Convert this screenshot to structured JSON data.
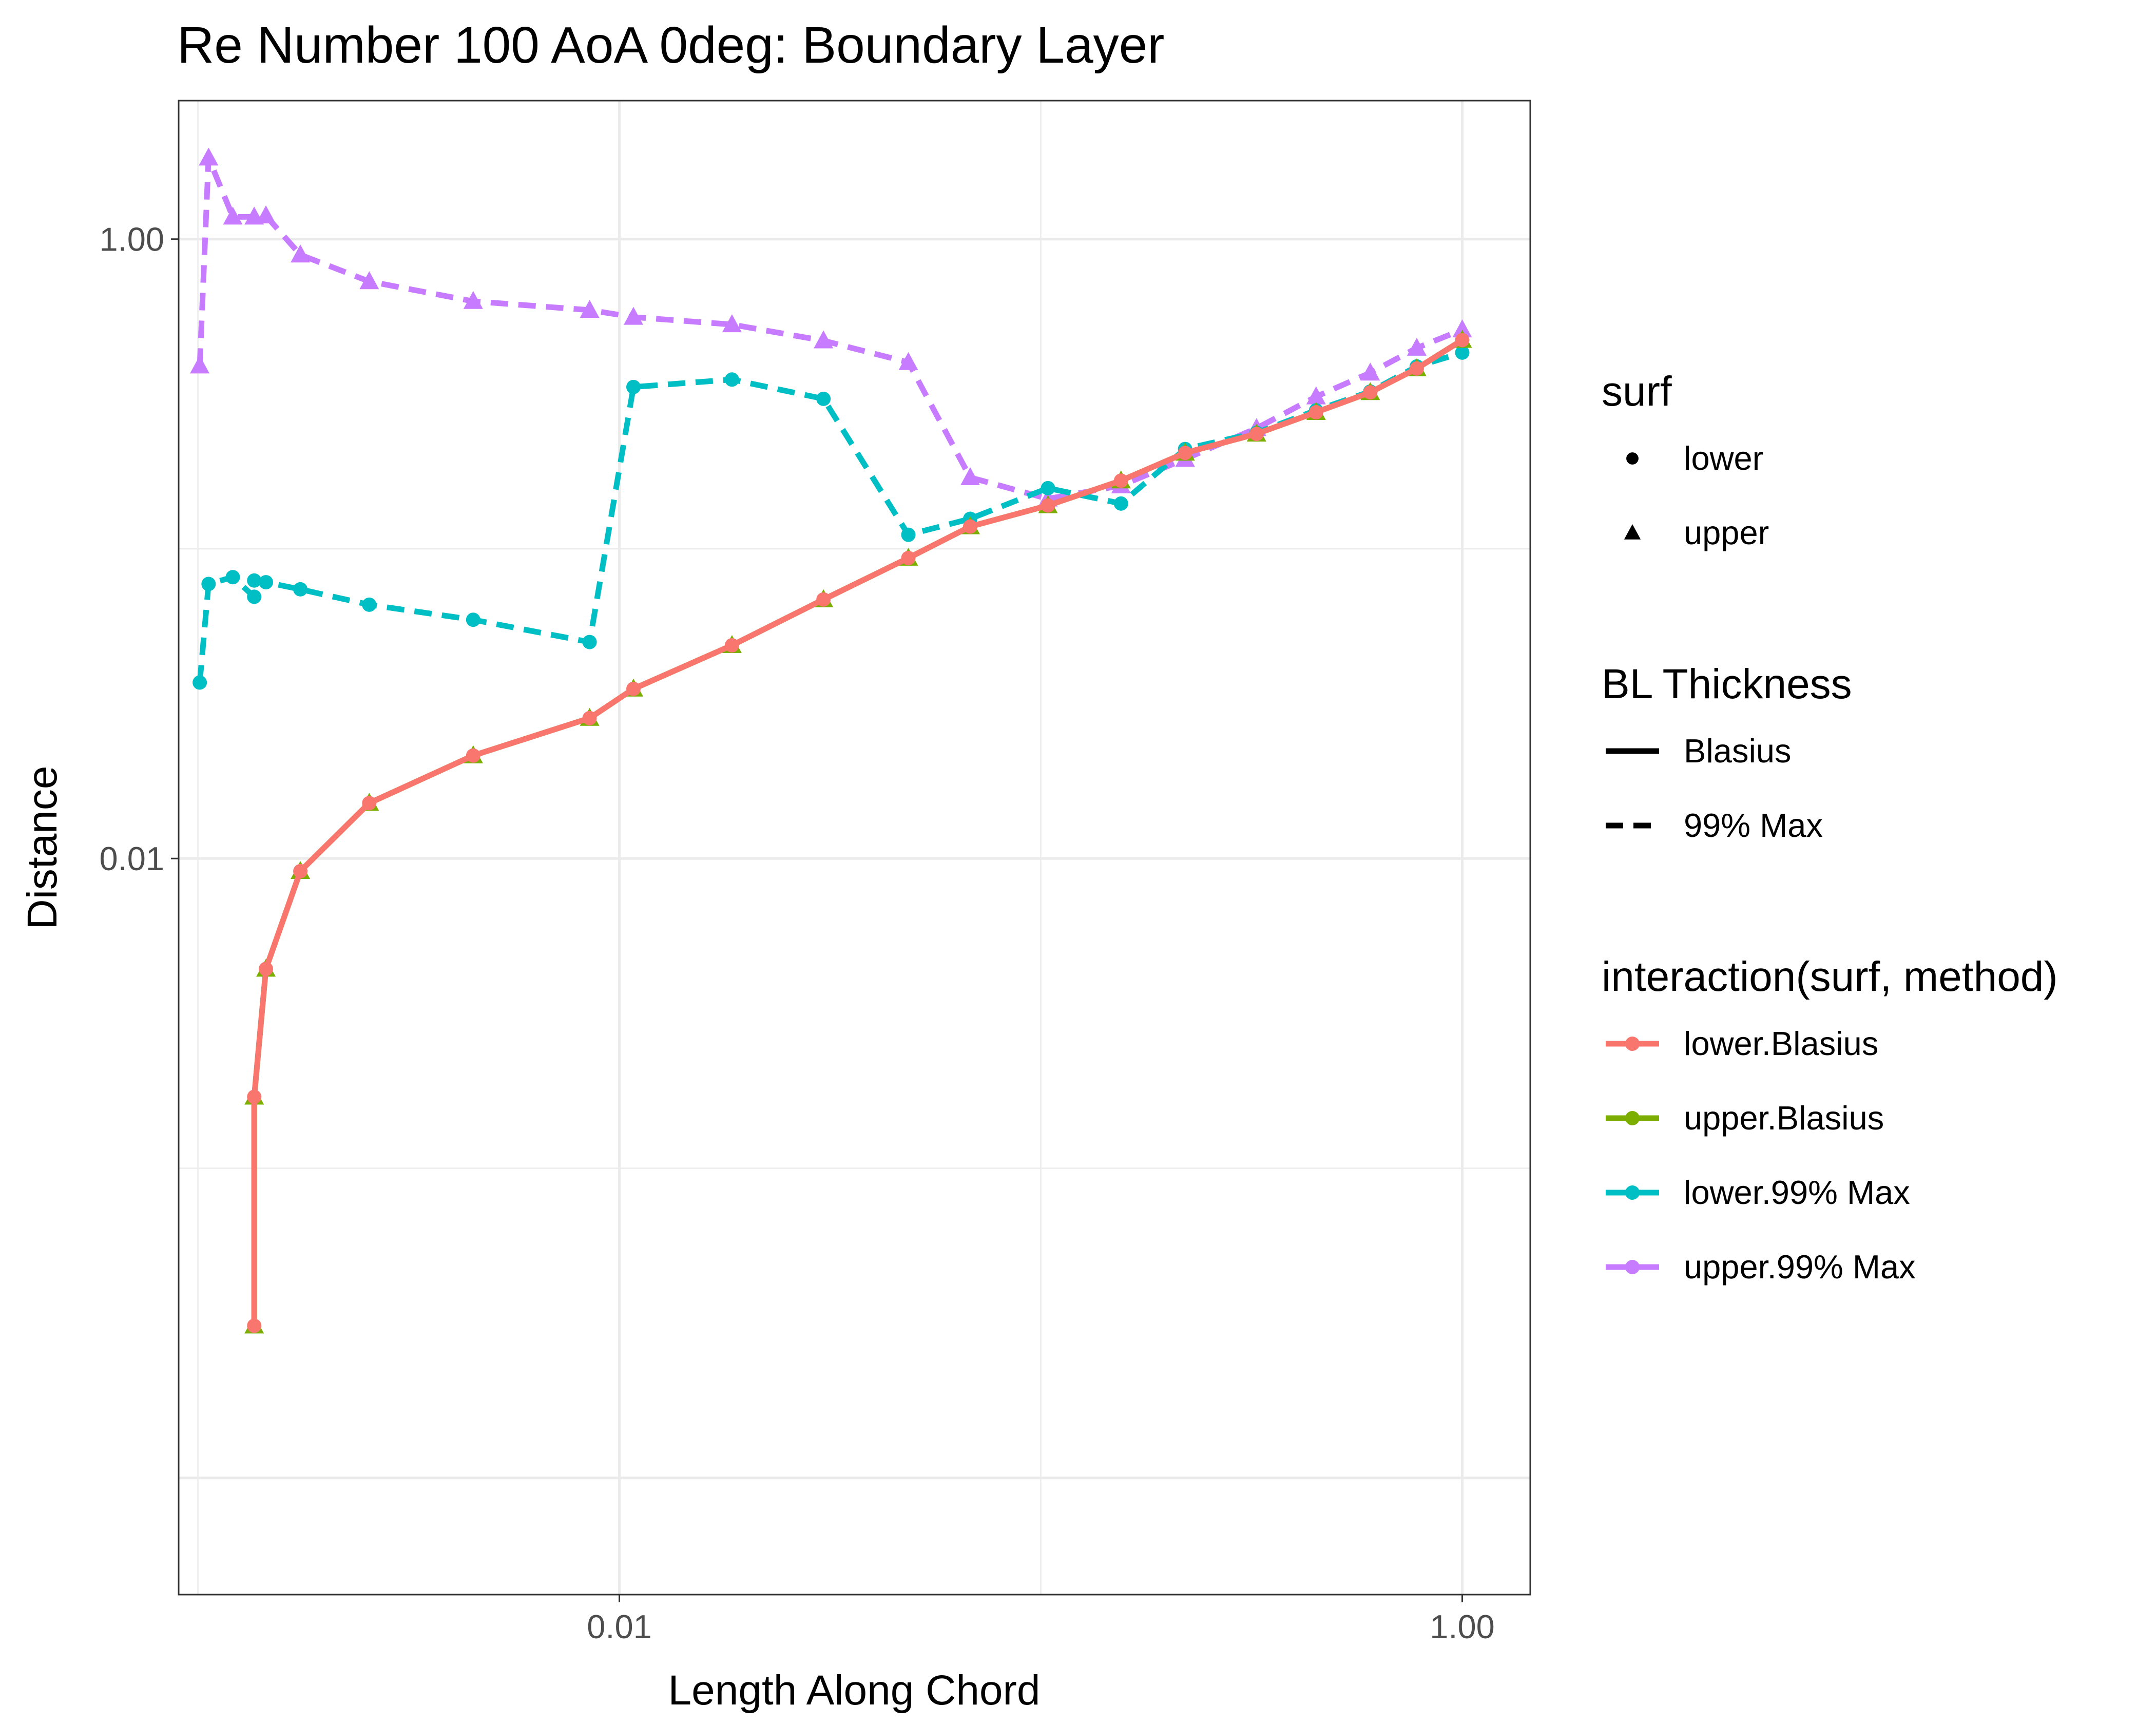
{
  "chart_data": {
    "type": "line",
    "title": "Re Number 100 AoA 0deg: Boundary Layer",
    "xlabel": "Length Along Chord",
    "ylabel": "Distance",
    "x_scale": "log10",
    "y_scale": "log10",
    "xlim": [
      0.0009,
      1.45
    ],
    "ylim": [
      4.2e-05,
      2.8
    ],
    "x_ticks": [
      {
        "value": 0.01,
        "label": "0.01"
      },
      {
        "value": 1.0,
        "label": "1.00"
      }
    ],
    "y_ticks": [
      {
        "value": 0.01,
        "label": "0.01"
      },
      {
        "value": 1.0,
        "label": "1.00"
      }
    ],
    "grid": true,
    "colors": {
      "lower_blasius": "#F8766D",
      "upper_blasius": "#7CAE00",
      "lower_99max": "#00BFC4",
      "upper_99max": "#C77CFF"
    },
    "series": [
      {
        "name": "upper.99% Max",
        "surf": "upper",
        "method": "99% Max",
        "color": "#C77CFF",
        "x": [
          0.00101,
          0.00106,
          0.00121,
          0.00136,
          0.00145,
          0.00175,
          0.00255,
          0.0045,
          0.0085,
          0.0108,
          0.0185,
          0.0305,
          0.0485,
          0.068,
          0.104,
          0.155,
          0.22,
          0.325,
          0.45,
          0.605,
          0.78,
          1.0
        ],
        "y": [
          0.39,
          1.83,
          1.18,
          1.18,
          1.19,
          0.89,
          0.73,
          0.63,
          0.59,
          0.56,
          0.53,
          0.47,
          0.4,
          0.17,
          0.145,
          0.16,
          0.195,
          0.245,
          0.31,
          0.37,
          0.445,
          0.51
        ]
      },
      {
        "name": "lower.99% Max",
        "surf": "lower",
        "method": "99% Max",
        "color": "#00BFC4",
        "x": [
          0.00101,
          0.00106,
          0.00121,
          0.00136,
          0.00136,
          0.00145,
          0.00175,
          0.00255,
          0.0045,
          0.0085,
          0.0108,
          0.0185,
          0.0305,
          0.0485,
          0.068,
          0.104,
          0.155,
          0.22,
          0.325,
          0.45,
          0.605,
          0.78,
          1.0
        ],
        "y": [
          0.037,
          0.077,
          0.081,
          0.07,
          0.079,
          0.078,
          0.074,
          0.066,
          0.059,
          0.05,
          0.333,
          0.352,
          0.305,
          0.111,
          0.125,
          0.157,
          0.14,
          0.21,
          0.237,
          0.28,
          0.322,
          0.388,
          0.43
        ]
      },
      {
        "name": "upper.Blasius",
        "surf": "upper",
        "method": "Blasius",
        "color": "#7CAE00",
        "x": [
          0.00136,
          0.00136,
          0.00145,
          0.00175,
          0.00255,
          0.0045,
          0.0085,
          0.0108,
          0.0185,
          0.0305,
          0.0485,
          0.068,
          0.104,
          0.155,
          0.22,
          0.325,
          0.45,
          0.605,
          0.78,
          1.0
        ],
        "y": [
          0.00031,
          0.0017,
          0.0044,
          0.0091,
          0.0151,
          0.0215,
          0.0284,
          0.0353,
          0.0488,
          0.0686,
          0.0934,
          0.118,
          0.138,
          0.166,
          0.204,
          0.235,
          0.276,
          0.32,
          0.382,
          0.472
        ]
      },
      {
        "name": "lower.Blasius",
        "surf": "lower",
        "method": "Blasius",
        "color": "#F8766D",
        "x": [
          0.00136,
          0.00136,
          0.00145,
          0.00175,
          0.00255,
          0.0045,
          0.0085,
          0.0108,
          0.0185,
          0.0305,
          0.0485,
          0.068,
          0.104,
          0.155,
          0.22,
          0.325,
          0.45,
          0.605,
          0.78,
          1.0
        ],
        "y": [
          0.00031,
          0.0017,
          0.0044,
          0.0091,
          0.0151,
          0.0215,
          0.0284,
          0.0353,
          0.0488,
          0.0686,
          0.0934,
          0.118,
          0.138,
          0.166,
          0.204,
          0.235,
          0.276,
          0.32,
          0.382,
          0.472
        ]
      }
    ],
    "legends": [
      {
        "title": "surf",
        "items": [
          {
            "label": "lower",
            "shape": "circle"
          },
          {
            "label": "upper",
            "shape": "triangle"
          }
        ]
      },
      {
        "title": "BL Thickness",
        "items": [
          {
            "label": "Blasius",
            "linetype": "solid"
          },
          {
            "label": "99% Max",
            "linetype": "dashed"
          }
        ]
      },
      {
        "title": "interaction(surf, method)",
        "items": [
          {
            "label": "lower.Blasius",
            "color": "#F8766D"
          },
          {
            "label": "upper.Blasius",
            "color": "#7CAE00"
          },
          {
            "label": "lower.99% Max",
            "color": "#00BFC4"
          },
          {
            "label": "upper.99% Max",
            "color": "#C77CFF"
          }
        ]
      }
    ],
    "legend_position": "right"
  }
}
